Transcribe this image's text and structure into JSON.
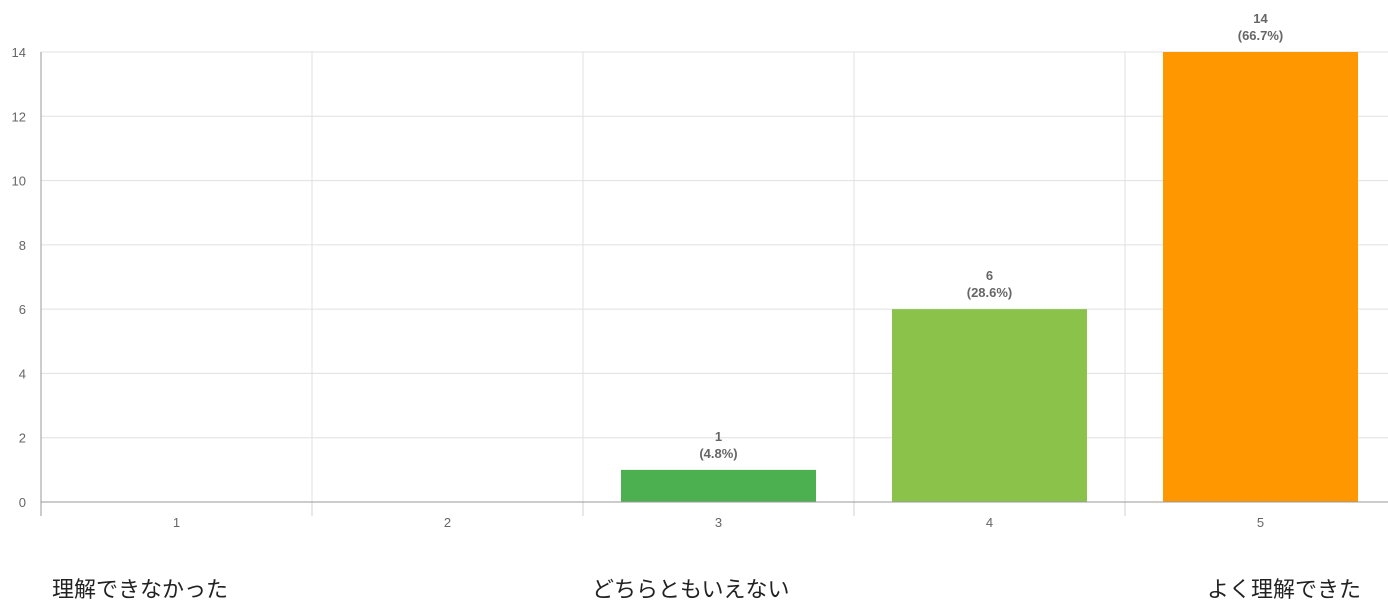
{
  "chart_data": {
    "type": "bar",
    "categories": [
      "1",
      "2",
      "3",
      "4",
      "5"
    ],
    "values": [
      0,
      0,
      1,
      6,
      14
    ],
    "value_labels": [
      "",
      "",
      "1",
      "6",
      "14"
    ],
    "percent_labels": [
      "",
      "",
      "(4.8%)",
      "(28.6%)",
      "(66.7%)"
    ],
    "bar_colors": [
      "#4caf50",
      "#4caf50",
      "#4caf50",
      "#8bc34a",
      "#ff9800"
    ],
    "y_ticks": [
      "0",
      "2",
      "4",
      "6",
      "8",
      "10",
      "12",
      "14"
    ],
    "ylim": [
      0,
      14
    ],
    "grid": true
  },
  "scale_labels": {
    "low": "理解できなかった",
    "mid": "どちらともいえない",
    "high": "よく理解できた"
  }
}
